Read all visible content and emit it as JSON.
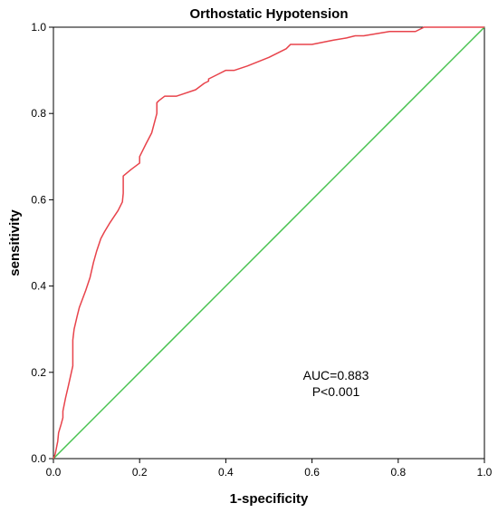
{
  "chart_data": {
    "type": "line",
    "title": "Orthostatic Hypotension",
    "xlabel": "1-specificity",
    "ylabel": "sensitivity",
    "xlim": [
      0,
      1
    ],
    "ylim": [
      0,
      1
    ],
    "xticks": [
      "0.0",
      "0.2",
      "0.4",
      "0.6",
      "0.8",
      "1.0"
    ],
    "yticks": [
      "0.0",
      "0.2",
      "0.4",
      "0.6",
      "0.8",
      "1.0"
    ],
    "grid": false,
    "annotations": [
      "AUC=0.883",
      "P<0.001"
    ],
    "colors": {
      "roc": "#e8434b",
      "reference": "#47c24f",
      "frame": "#000000"
    },
    "series": [
      {
        "color": "#e8434b",
        "x": [
          0,
          0.004,
          0.01,
          0.012,
          0.018,
          0.022,
          0.022,
          0.028,
          0.035,
          0.045,
          0.045,
          0.048,
          0.055,
          0.06,
          0.075,
          0.085,
          0.093,
          0.1,
          0.11,
          0.118,
          0.13,
          0.15,
          0.16,
          0.162,
          0.162,
          0.18,
          0.2,
          0.2,
          0.205,
          0.215,
          0.228,
          0.24,
          0.24,
          0.245,
          0.258,
          0.27,
          0.285,
          0.3,
          0.33,
          0.35,
          0.36,
          0.36,
          0.38,
          0.4,
          0.42,
          0.45,
          0.5,
          0.53,
          0.54,
          0.55,
          0.56,
          0.6,
          0.65,
          0.68,
          0.7,
          0.72,
          0.78,
          0.8,
          0.84,
          0.86,
          0.88,
          0.9,
          0.95,
          1.0
        ],
        "y": [
          0,
          0.01,
          0.04,
          0.06,
          0.08,
          0.095,
          0.11,
          0.14,
          0.17,
          0.215,
          0.275,
          0.3,
          0.33,
          0.35,
          0.39,
          0.42,
          0.455,
          0.48,
          0.51,
          0.525,
          0.545,
          0.575,
          0.595,
          0.615,
          0.655,
          0.67,
          0.685,
          0.7,
          0.71,
          0.73,
          0.755,
          0.8,
          0.825,
          0.83,
          0.84,
          0.84,
          0.84,
          0.845,
          0.855,
          0.87,
          0.875,
          0.88,
          0.89,
          0.9,
          0.9,
          0.91,
          0.93,
          0.945,
          0.95,
          0.96,
          0.96,
          0.96,
          0.97,
          0.975,
          0.98,
          0.98,
          0.99,
          0.99,
          0.99,
          1.0,
          1.0,
          1.0,
          1.0,
          1.0
        ]
      },
      {
        "color": "#47c24f",
        "x": [
          0,
          1
        ],
        "y": [
          0,
          1
        ]
      }
    ]
  }
}
